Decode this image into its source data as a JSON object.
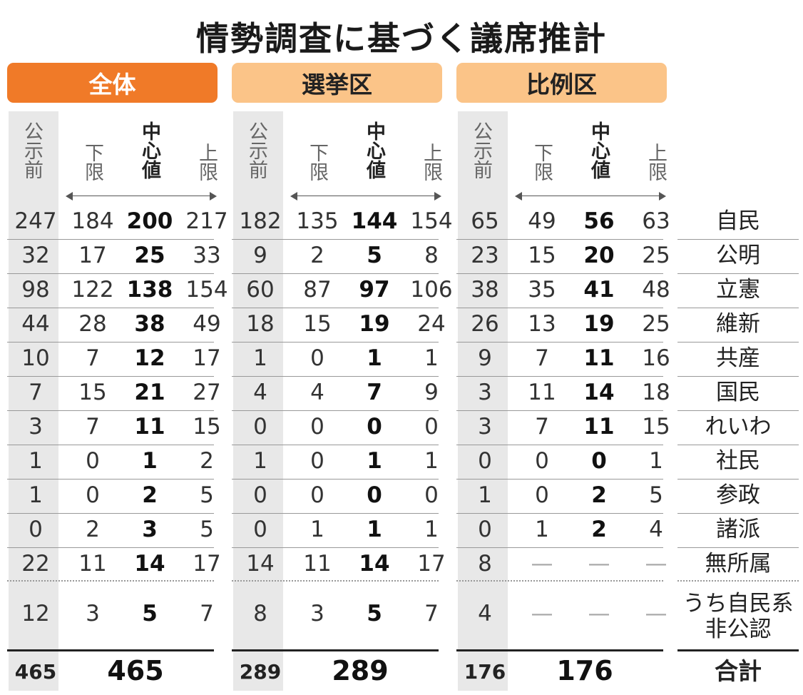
{
  "title": "情勢調査に基づく議席推計",
  "sections": [
    {
      "label": "全体"
    },
    {
      "label": "選挙区"
    },
    {
      "label": "比例区"
    }
  ],
  "column_labels": {
    "prev": "公示前",
    "low": "下限",
    "mid": "中心値",
    "high": "上限"
  },
  "parties": [
    "自民",
    "公明",
    "立憲",
    "維新",
    "共産",
    "国民",
    "れいわ",
    "社民",
    "参政",
    "諸派",
    "無所属"
  ],
  "rows": [
    [
      [
        "247",
        "184",
        "200",
        "217"
      ],
      [
        "182",
        "135",
        "144",
        "154"
      ],
      [
        "65",
        "49",
        "56",
        "63"
      ]
    ],
    [
      [
        "32",
        "17",
        "25",
        "33"
      ],
      [
        "9",
        "2",
        "5",
        "8"
      ],
      [
        "23",
        "15",
        "20",
        "25"
      ]
    ],
    [
      [
        "98",
        "122",
        "138",
        "154"
      ],
      [
        "60",
        "87",
        "97",
        "106"
      ],
      [
        "38",
        "35",
        "41",
        "48"
      ]
    ],
    [
      [
        "44",
        "28",
        "38",
        "49"
      ],
      [
        "18",
        "15",
        "19",
        "24"
      ],
      [
        "26",
        "13",
        "19",
        "25"
      ]
    ],
    [
      [
        "10",
        "7",
        "12",
        "17"
      ],
      [
        "1",
        "0",
        "1",
        "1"
      ],
      [
        "9",
        "7",
        "11",
        "16"
      ]
    ],
    [
      [
        "7",
        "15",
        "21",
        "27"
      ],
      [
        "4",
        "4",
        "7",
        "9"
      ],
      [
        "3",
        "11",
        "14",
        "18"
      ]
    ],
    [
      [
        "3",
        "7",
        "11",
        "15"
      ],
      [
        "0",
        "0",
        "0",
        "0"
      ],
      [
        "3",
        "7",
        "11",
        "15"
      ]
    ],
    [
      [
        "1",
        "0",
        "1",
        "2"
      ],
      [
        "1",
        "0",
        "1",
        "1"
      ],
      [
        "0",
        "0",
        "0",
        "1"
      ]
    ],
    [
      [
        "1",
        "0",
        "2",
        "5"
      ],
      [
        "0",
        "0",
        "0",
        "0"
      ],
      [
        "1",
        "0",
        "2",
        "5"
      ]
    ],
    [
      [
        "0",
        "2",
        "3",
        "5"
      ],
      [
        "0",
        "1",
        "1",
        "1"
      ],
      [
        "0",
        "1",
        "2",
        "4"
      ]
    ],
    [
      [
        "22",
        "11",
        "14",
        "17"
      ],
      [
        "14",
        "11",
        "14",
        "17"
      ],
      [
        "8",
        "—",
        "—",
        "—"
      ]
    ]
  ],
  "sub_row": {
    "label_line1": "うち自民系",
    "label_line2": "非公認",
    "values": [
      [
        "12",
        "3",
        "5",
        "7"
      ],
      [
        "8",
        "3",
        "5",
        "7"
      ],
      [
        "4",
        "—",
        "—",
        "—"
      ]
    ]
  },
  "total": {
    "label": "合計",
    "values": [
      [
        "465",
        "465"
      ],
      [
        "289",
        "289"
      ],
      [
        "176",
        "176"
      ]
    ]
  }
}
